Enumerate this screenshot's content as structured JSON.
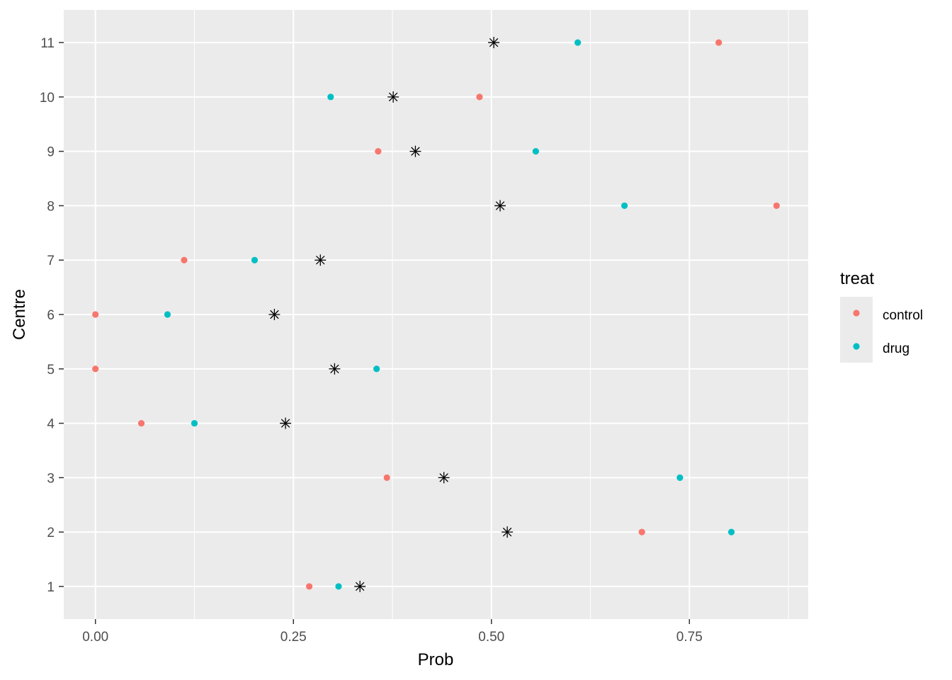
{
  "chart_data": {
    "type": "scatter",
    "xlabel": "Prob",
    "ylabel": "Centre",
    "xlim": [
      -0.04,
      0.9
    ],
    "ylim": [
      0.4,
      11.6
    ],
    "x_ticks": [
      {
        "value": 0.0,
        "label": "0.00"
      },
      {
        "value": 0.25,
        "label": "0.25"
      },
      {
        "value": 0.5,
        "label": "0.50"
      },
      {
        "value": 0.75,
        "label": "0.75"
      }
    ],
    "y_ticks": [
      {
        "value": 1,
        "label": "1"
      },
      {
        "value": 2,
        "label": "2"
      },
      {
        "value": 3,
        "label": "3"
      },
      {
        "value": 4,
        "label": "4"
      },
      {
        "value": 5,
        "label": "5"
      },
      {
        "value": 6,
        "label": "6"
      },
      {
        "value": 7,
        "label": "7"
      },
      {
        "value": 8,
        "label": "8"
      },
      {
        "value": 9,
        "label": "9"
      },
      {
        "value": 10,
        "label": "10"
      },
      {
        "value": 11,
        "label": "11"
      }
    ],
    "grid": true,
    "legend": {
      "title": "treat",
      "placement": "right",
      "entries": [
        {
          "label": "control",
          "color": "#F8766D"
        },
        {
          "label": "drug",
          "color": "#00BFC4"
        }
      ]
    },
    "series": [
      {
        "name": "control",
        "color": "#F8766D",
        "marker": "circle",
        "points": [
          {
            "x": 0.27,
            "y": 1
          },
          {
            "x": 0.69,
            "y": 2
          },
          {
            "x": 0.368,
            "y": 3
          },
          {
            "x": 0.058,
            "y": 4
          },
          {
            "x": 0.0,
            "y": 5
          },
          {
            "x": 0.0,
            "y": 6
          },
          {
            "x": 0.112,
            "y": 7
          },
          {
            "x": 0.86,
            "y": 8
          },
          {
            "x": 0.357,
            "y": 9
          },
          {
            "x": 0.485,
            "y": 10
          },
          {
            "x": 0.787,
            "y": 11
          }
        ]
      },
      {
        "name": "drug",
        "color": "#00BFC4",
        "marker": "circle",
        "points": [
          {
            "x": 0.307,
            "y": 1
          },
          {
            "x": 0.803,
            "y": 2
          },
          {
            "x": 0.738,
            "y": 3
          },
          {
            "x": 0.125,
            "y": 4
          },
          {
            "x": 0.355,
            "y": 5
          },
          {
            "x": 0.091,
            "y": 6
          },
          {
            "x": 0.201,
            "y": 7
          },
          {
            "x": 0.668,
            "y": 8
          },
          {
            "x": 0.556,
            "y": 9
          },
          {
            "x": 0.297,
            "y": 10
          },
          {
            "x": 0.609,
            "y": 11
          }
        ]
      },
      {
        "color": "#000000",
        "marker": "asterisk",
        "points": [
          {
            "x": 0.334,
            "y": 1
          },
          {
            "x": 0.52,
            "y": 2
          },
          {
            "x": 0.44,
            "y": 3
          },
          {
            "x": 0.24,
            "y": 4
          },
          {
            "x": 0.302,
            "y": 5
          },
          {
            "x": 0.226,
            "y": 6
          },
          {
            "x": 0.284,
            "y": 7
          },
          {
            "x": 0.511,
            "y": 8
          },
          {
            "x": 0.404,
            "y": 9
          },
          {
            "x": 0.376,
            "y": 10
          },
          {
            "x": 0.503,
            "y": 11
          }
        ]
      }
    ]
  }
}
